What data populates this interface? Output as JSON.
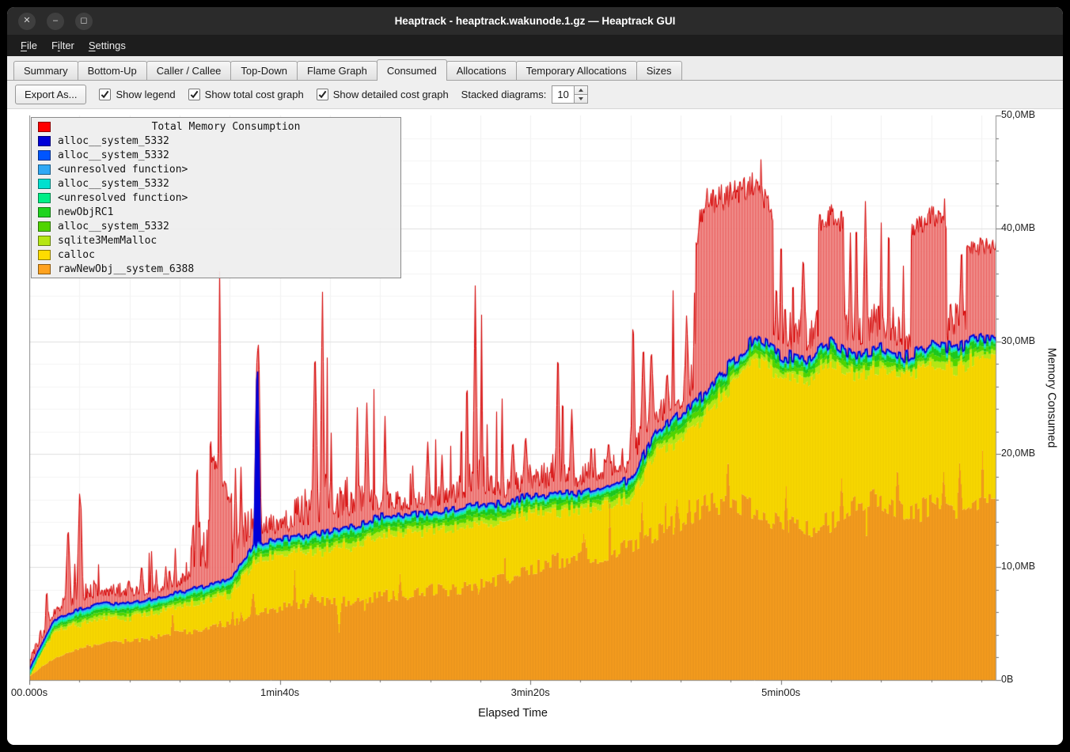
{
  "window": {
    "title": "Heaptrack - heaptrack.wakunode.1.gz — Heaptrack GUI",
    "buttons": [
      {
        "name": "close",
        "glyph": "✕"
      },
      {
        "name": "minimize",
        "glyph": "–"
      },
      {
        "name": "maximize",
        "glyph": "◻"
      }
    ]
  },
  "menubar": {
    "items": [
      {
        "label": "File",
        "mnemonic": 0
      },
      {
        "label": "Filter",
        "mnemonic": 1
      },
      {
        "label": "Settings",
        "mnemonic": 0
      }
    ]
  },
  "tabs": {
    "items": [
      "Summary",
      "Bottom-Up",
      "Caller / Callee",
      "Top-Down",
      "Flame Graph",
      "Consumed",
      "Allocations",
      "Temporary Allocations",
      "Sizes"
    ],
    "active": "Consumed"
  },
  "toolbar": {
    "export_label": "Export As...",
    "checkboxes": [
      {
        "label": "Show legend",
        "checked": true
      },
      {
        "label": "Show total cost graph",
        "checked": true
      },
      {
        "label": "Show detailed cost graph",
        "checked": true
      }
    ],
    "stacked_label": "Stacked diagrams:",
    "stacked_value": "10"
  },
  "legend": {
    "title": "Total Memory Consumption",
    "title_color": "#ff0000",
    "entries": [
      {
        "label": "alloc__system_5332",
        "color": "#0000d8"
      },
      {
        "label": "alloc__system_5332",
        "color": "#0055ff"
      },
      {
        "label": "<unresolved function>",
        "color": "#2fa8f5"
      },
      {
        "label": "alloc__system_5332",
        "color": "#00e0cf"
      },
      {
        "label": "<unresolved function>",
        "color": "#00ef86"
      },
      {
        "label": "newObjRC1",
        "color": "#1fd41f"
      },
      {
        "label": "alloc__system_5332",
        "color": "#4fd400"
      },
      {
        "label": "sqlite3MemMalloc",
        "color": "#b5e614"
      },
      {
        "label": "calloc",
        "color": "#fedc00"
      },
      {
        "label": "rawNewObj__system_6388",
        "color": "#ffa21f"
      }
    ]
  },
  "axes": {
    "x_label": "Elapsed Time",
    "y_label": "Memory Consumed",
    "x_ticks": [
      {
        "label": "00.000s",
        "t": 0
      },
      {
        "label": "1min40s",
        "t": 100
      },
      {
        "label": "3min20s",
        "t": 200
      },
      {
        "label": "5min00s",
        "t": 300
      }
    ],
    "y_ticks": [
      {
        "label": "0B",
        "mb": 0
      },
      {
        "label": "10,0MB",
        "mb": 10
      },
      {
        "label": "20,0MB",
        "mb": 20
      },
      {
        "label": "30,0MB",
        "mb": 30
      },
      {
        "label": "40,0MB",
        "mb": 40
      },
      {
        "label": "50,0MB",
        "mb": 50
      }
    ]
  },
  "chart_data": {
    "type": "area",
    "title": "Total Memory Consumption",
    "x_label": "Elapsed Time",
    "y_label": "Memory Consumed",
    "x_max_seconds": 386,
    "y_max_mb": 50,
    "x_tick_seconds": [
      0,
      100,
      200,
      300
    ],
    "grid": {
      "h_minor_mb": 2,
      "h_major_mb": 10,
      "v_minor_s": 20
    },
    "series_bottom_to_top": [
      {
        "name": "rawNewObj__system_6388",
        "color": "#ffa21f"
      },
      {
        "name": "calloc",
        "color": "#fedc00"
      },
      {
        "name": "sqlite3MemMalloc",
        "color": "#b5e614"
      },
      {
        "name": "alloc__system_5332",
        "color": "#4fd400"
      },
      {
        "name": "newObjRC1",
        "color": "#1fd41f"
      },
      {
        "name": "<unresolved function>",
        "color": "#00ef86"
      },
      {
        "name": "alloc__system_5332",
        "color": "#00e0cf"
      },
      {
        "name": "<unresolved function>",
        "color": "#2fa8f5"
      },
      {
        "name": "alloc__system_5332",
        "color": "#0055ff"
      },
      {
        "name": "alloc__system_5332",
        "color": "#0000d8"
      },
      {
        "name": "Total Memory Consumption",
        "color": "#ff0000"
      }
    ],
    "control_points": {
      "t_seconds": [
        0,
        5,
        10,
        20,
        30,
        40,
        50,
        60,
        70,
        80,
        90,
        100,
        110,
        120,
        130,
        140,
        150,
        160,
        170,
        180,
        190,
        200,
        210,
        220,
        230,
        240,
        250,
        260,
        270,
        280,
        290,
        300,
        310,
        320,
        330,
        340,
        350,
        360,
        370,
        380
      ],
      "orange_top_mb": [
        0.3,
        1.2,
        2.0,
        2.8,
        3.2,
        3.5,
        3.8,
        4.2,
        4.5,
        5.0,
        5.8,
        6.5,
        6.8,
        7.0,
        7.0,
        7.5,
        7.5,
        8.0,
        8.0,
        8.5,
        9.0,
        10.0,
        10.5,
        11.0,
        11.0,
        12.0,
        13.0,
        14.0,
        15.5,
        16.0,
        15.0,
        14.0,
        13.5,
        14.0,
        15.5,
        16.0,
        14.5,
        15.5,
        14.5,
        16.0
      ],
      "yellow_top_mb": [
        0.6,
        2.5,
        4.0,
        5.0,
        5.5,
        5.5,
        6.0,
        6.5,
        7.0,
        7.5,
        10.5,
        11.0,
        11.3,
        11.5,
        12.0,
        13.0,
        13.0,
        13.2,
        13.5,
        14.0,
        14.0,
        14.8,
        14.8,
        15.0,
        15.5,
        16.0,
        20.0,
        21.5,
        23.5,
        26.0,
        28.5,
        27.0,
        26.5,
        28.0,
        27.0,
        27.5,
        27.0,
        28.0,
        27.5,
        28.5
      ],
      "stack_top_mb": [
        0.9,
        3.2,
        5.3,
        6.3,
        6.8,
        6.8,
        7.2,
        7.8,
        8.3,
        9.0,
        12.0,
        12.5,
        12.8,
        13.2,
        13.6,
        14.5,
        14.6,
        14.8,
        15.1,
        15.6,
        15.6,
        16.4,
        16.4,
        16.6,
        17.1,
        17.8,
        21.8,
        23.5,
        25.5,
        28.0,
        30.3,
        28.8,
        28.3,
        29.8,
        28.7,
        29.3,
        28.7,
        29.8,
        29.3,
        30.5
      ],
      "red_envelope_mb": [
        6,
        9,
        11,
        17,
        14,
        14,
        12,
        13,
        37,
        24,
        30,
        20,
        30,
        35,
        30,
        27,
        20,
        23,
        26,
        35,
        24,
        28,
        30,
        26,
        27,
        33,
        33,
        36,
        45.5,
        45.5,
        46.5,
        42,
        44,
        46,
        45,
        45.5,
        44,
        46,
        45,
        46
      ]
    },
    "red_tall_spikes": [
      {
        "t": 20.5,
        "mb": 17
      },
      {
        "t": 76,
        "mb": 37
      },
      {
        "t": 91.5,
        "mb": 30
      },
      {
        "t": 114,
        "mb": 30
      },
      {
        "t": 117,
        "mb": 35
      },
      {
        "t": 178,
        "mb": 35
      },
      {
        "t": 211,
        "mb": 30
      },
      {
        "t": 241,
        "mb": 33
      },
      {
        "t": 292,
        "mb": 46.5
      }
    ],
    "blue_spikes": [
      {
        "t": 91,
        "mb": 29
      }
    ],
    "red_dense_regions": [
      {
        "t0": 72,
        "t1": 81,
        "d": 0.5
      },
      {
        "t0": 266,
        "t1": 297,
        "d": 0.92
      },
      {
        "t0": 315,
        "t1": 325,
        "d": 0.75
      },
      {
        "t0": 352,
        "t1": 366,
        "d": 0.75
      },
      {
        "t0": 374,
        "t1": 386,
        "d": 0.55
      }
    ]
  }
}
